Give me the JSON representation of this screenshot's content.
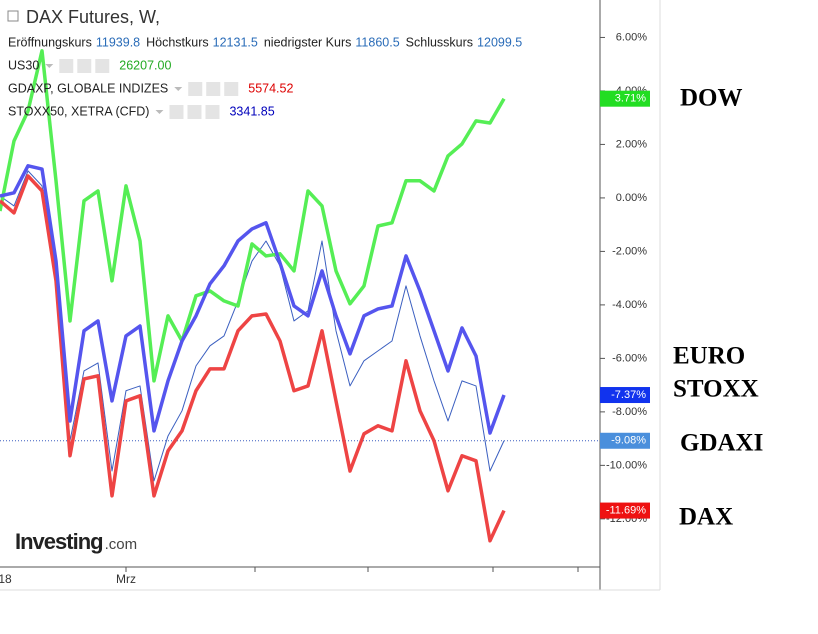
{
  "chart_data": {
    "type": "line",
    "title": "DAX Futures, W,",
    "ohlc": [
      {
        "label": "Eröffnungskurs",
        "value": 11939.8
      },
      {
        "label": "Höchstkurs",
        "value": 12131.5
      },
      {
        "label": "niedrigster Kurs",
        "value": 11860.5
      },
      {
        "label": "Schlusskurs",
        "value": 12099.5
      }
    ],
    "categories": [
      "18",
      null,
      null,
      null,
      null,
      null,
      null,
      null,
      null,
      "Mrz",
      null,
      null,
      null,
      null,
      null,
      null,
      null,
      null,
      null,
      null,
      null,
      null,
      null,
      null,
      null,
      null,
      null,
      null,
      null,
      null,
      null,
      null,
      null,
      null,
      null,
      null,
      null
    ],
    "series": [
      {
        "name": "DAX Futures, W,",
        "color": "#3b5fc0",
        "last_label": "-9.08%",
        "label_color": "#4a8fdc",
        "values": [
          0.07,
          -0.3,
          1.01,
          0.45,
          -2.73,
          -9.08,
          -6.47,
          -6.17,
          -10.21,
          -7.21,
          -7.03,
          -10.58,
          -8.9,
          -7.96,
          -6.28,
          -5.53,
          -5.16,
          -3.85,
          -2.36,
          -1.61,
          -2.54,
          -4.6,
          -4.22,
          -1.61,
          -4.97,
          -7.03,
          -6.09,
          -5.72,
          -5.35,
          -3.29,
          -5.16,
          -6.84,
          -8.34,
          -6.84,
          -7.03,
          -10.21,
          -9.08
        ]
      },
      {
        "name": "US30",
        "color": "#55ee55",
        "legend_value": 26207,
        "legend_value_label": "26207.00",
        "legend_color": "#22aa22",
        "last_label": "3.71%",
        "label_color": "#22dd22",
        "values": [
          -0.49,
          2.13,
          3.25,
          5.5,
          0.64,
          -4.6,
          -0.11,
          0.26,
          -3.1,
          0.45,
          -1.61,
          -6.84,
          -4.41,
          -5.35,
          -3.66,
          -3.48,
          -3.85,
          -4.04,
          -1.72,
          -2.17,
          -2.09,
          -2.73,
          0.26,
          -0.3,
          -2.73,
          -3.96,
          -3.29,
          -1.05,
          -0.93,
          0.64,
          0.64,
          0.26,
          1.57,
          2.02,
          2.88,
          2.8,
          3.71
        ]
      },
      {
        "name": "GDAXP, GLOBALE INDIZES",
        "color": "#ee4444",
        "legend_value": 5574.52,
        "legend_color": "#dd0000",
        "last_label": "-11.69%",
        "label_color": "#ee1111",
        "values": [
          -0.11,
          -0.56,
          0.82,
          0.26,
          -3.1,
          -9.64,
          -6.77,
          -6.65,
          -11.14,
          -7.59,
          -7.4,
          -11.14,
          -9.46,
          -8.71,
          -7.21,
          -6.39,
          -6.39,
          -4.97,
          -4.41,
          -4.34,
          -5.35,
          -7.21,
          -7.03,
          -4.97,
          -7.59,
          -10.21,
          -8.82,
          -8.52,
          -8.71,
          -6.09,
          -7.96,
          -9.08,
          -10.95,
          -9.64,
          -9.83,
          -12.82,
          -11.69
        ]
      },
      {
        "name": "STOXX50, XETRA (CFD)",
        "color": "#5555ee",
        "legend_value": 3341.85,
        "legend_color": "#0000bb",
        "last_label": "-7.37%",
        "label_color": "#1133ee",
        "values": [
          0.07,
          0.19,
          1.2,
          1.08,
          -2.36,
          -8.34,
          -4.97,
          -4.6,
          -7.59,
          -5.16,
          -4.79,
          -8.71,
          -6.84,
          -5.35,
          -4.41,
          -3.21,
          -2.54,
          -1.61,
          -1.16,
          -0.93,
          -2.43,
          -4.04,
          -4.41,
          -2.73,
          -4.41,
          -5.83,
          -4.41,
          -4.15,
          -4.04,
          -2.17,
          -3.48,
          -4.97,
          -6.47,
          -4.86,
          -5.91,
          -8.79,
          -7.37
        ]
      }
    ],
    "ylim": [
      -13.8,
      7.4
    ],
    "yticks": [
      {
        "value": 6,
        "label": "6.00%"
      },
      {
        "value": 4,
        "label": "4.00%"
      },
      {
        "value": 2,
        "label": "2.00%"
      },
      {
        "value": 0,
        "label": "0.00%"
      },
      {
        "value": -2,
        "label": "-2.00%"
      },
      {
        "value": -4,
        "label": "-4.00%"
      },
      {
        "value": -6,
        "label": "-6.00%"
      },
      {
        "value": -8,
        "label": "-8.00%"
      },
      {
        "value": -10,
        "label": "-10.00%"
      },
      {
        "value": -12,
        "label": "-12.00%"
      }
    ],
    "logo": "Investing",
    "logo_suffix": ".com",
    "annotations": [
      "DOW",
      "EURO",
      "STOXX",
      "GDAXI",
      "DAX"
    ]
  }
}
